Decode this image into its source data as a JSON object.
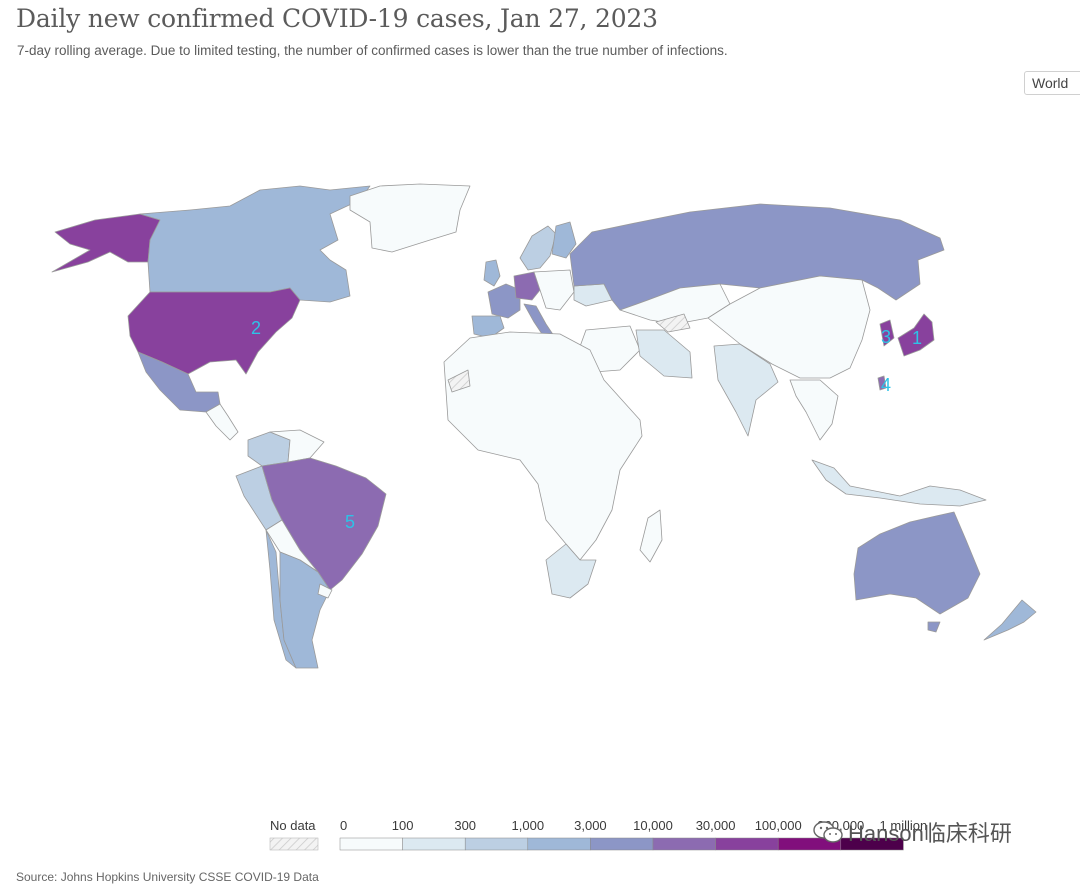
{
  "header": {
    "title": "Daily new confirmed COVID-19 cases, Jan 27, 2023",
    "subtitle": "7-day rolling average. Due to limited testing, the number of confirmed cases is lower than the true number of infections."
  },
  "controls": {
    "region_label": "World"
  },
  "colors": {
    "no_data": "#f5f5f5",
    "borders": "#9a9a9a",
    "scale": [
      "#f7fbfc",
      "#dce9f1",
      "#bccfe3",
      "#9fb8d8",
      "#8c96c6",
      "#8c6bb1",
      "#88419d",
      "#810f7c",
      "#4d004b"
    ],
    "markers": "#2ec2e6"
  },
  "legend": {
    "no_data_label": "No data",
    "ticks": [
      "0",
      "100",
      "300",
      "1,000",
      "3,000",
      "10,000",
      "30,000",
      "100,000",
      "300,000",
      "1 million"
    ]
  },
  "countries": [
    {
      "name": "Canada",
      "bin": 3
    },
    {
      "name": "United States",
      "bin": 6
    },
    {
      "name": "Alaska",
      "bin": 6
    },
    {
      "name": "Greenland",
      "bin": 0
    },
    {
      "name": "Mexico",
      "bin": 4
    },
    {
      "name": "Brazil",
      "bin": 5
    },
    {
      "name": "Argentina",
      "bin": 3
    },
    {
      "name": "Chile",
      "bin": 3
    },
    {
      "name": "Peru",
      "bin": 2
    },
    {
      "name": "Colombia",
      "bin": 2
    },
    {
      "name": "Russia",
      "bin": 4
    },
    {
      "name": "Germany",
      "bin": 5
    },
    {
      "name": "France",
      "bin": 4
    },
    {
      "name": "Spain",
      "bin": 3
    },
    {
      "name": "Italy",
      "bin": 4
    },
    {
      "name": "United Kingdom",
      "bin": 3
    },
    {
      "name": "Sweden",
      "bin": 2
    },
    {
      "name": "Finland",
      "bin": 3
    },
    {
      "name": "Ukraine",
      "bin": 1
    },
    {
      "name": "Iran",
      "bin": 1
    },
    {
      "name": "India",
      "bin": 1
    },
    {
      "name": "China",
      "bin": 0
    },
    {
      "name": "Japan",
      "bin": 6
    },
    {
      "name": "South Korea",
      "bin": 6
    },
    {
      "name": "Taiwan",
      "bin": 5
    },
    {
      "name": "Australia",
      "bin": 4
    },
    {
      "name": "New Zealand",
      "bin": 3
    },
    {
      "name": "South Africa",
      "bin": 1
    },
    {
      "name": "Africa (other)",
      "bin": 0
    },
    {
      "name": "Indonesia",
      "bin": 1
    }
  ],
  "markers": [
    {
      "label": "1"
    },
    {
      "label": "2"
    },
    {
      "label": "3"
    },
    {
      "label": "4"
    },
    {
      "label": "5"
    }
  ],
  "watermark": {
    "text": "Hanson临床科研",
    "icon": "wechat-icon"
  },
  "source": {
    "text": "Source: Johns Hopkins University CSSE COVID-19 Data"
  }
}
